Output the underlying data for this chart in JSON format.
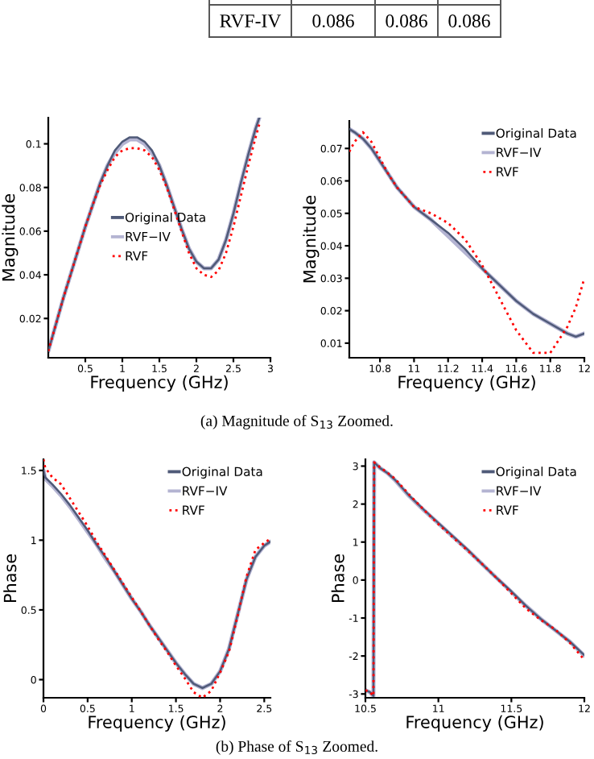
{
  "chart_data": [
    {
      "type": "other",
      "annotations": [
        "RVF-IV",
        "0.086",
        "0.086",
        "0.086"
      ]
    },
    {
      "type": "line",
      "xlabel": "Frequency (GHz)",
      "ylabel": "Magnitude",
      "legend": "center",
      "grid": false,
      "xlim": [
        0,
        3
      ],
      "xticks": [
        0.5,
        1,
        1.5,
        2,
        2.5,
        3
      ],
      "ylim": [
        0.002,
        0.112
      ],
      "yticks": [
        0.02,
        0.04,
        0.06,
        0.08,
        0.1
      ],
      "x": [
        0,
        0.1,
        0.2,
        0.3,
        0.4,
        0.5,
        0.6,
        0.7,
        0.8,
        0.9,
        1.0,
        1.1,
        1.2,
        1.3,
        1.4,
        1.5,
        1.6,
        1.7,
        1.8,
        1.9,
        2.0,
        2.1,
        2.2,
        2.3,
        2.4,
        2.5,
        2.6,
        2.7,
        2.8,
        2.85
      ],
      "annotations": [
        "(a) Magnitude of S$_{13}$ Zoomed."
      ],
      "series": [
        {
          "name": "Original Data",
          "color": "#4f5a78",
          "line_style": "solid",
          "values": [
            0.005,
            0.017,
            0.029,
            0.04,
            0.051,
            0.062,
            0.072,
            0.082,
            0.09,
            0.097,
            0.101,
            0.103,
            0.103,
            0.101,
            0.097,
            0.09,
            0.081,
            0.071,
            0.061,
            0.052,
            0.046,
            0.043,
            0.043,
            0.047,
            0.056,
            0.068,
            0.082,
            0.095,
            0.107,
            0.112
          ]
        },
        {
          "name": "RVF−IV",
          "color": "#b4b4d2",
          "line_style": "solid",
          "values": [
            0.005,
            0.017,
            0.029,
            0.04,
            0.051,
            0.062,
            0.072,
            0.082,
            0.09,
            0.096,
            0.1,
            0.102,
            0.102,
            0.1,
            0.096,
            0.09,
            0.081,
            0.071,
            0.061,
            0.052,
            0.046,
            0.043,
            0.043,
            0.047,
            0.056,
            0.068,
            0.082,
            0.095,
            0.107,
            0.112
          ]
        },
        {
          "name": "RVF",
          "color": "#ff0000",
          "line_style": "dotted",
          "values": [
            0.005,
            0.017,
            0.029,
            0.04,
            0.051,
            0.062,
            0.072,
            0.081,
            0.088,
            0.094,
            0.097,
            0.098,
            0.098,
            0.097,
            0.094,
            0.088,
            0.08,
            0.07,
            0.06,
            0.05,
            0.043,
            0.04,
            0.039,
            0.042,
            0.05,
            0.062,
            0.076,
            0.09,
            0.103,
            0.109
          ]
        }
      ]
    },
    {
      "type": "line",
      "xlabel": "Frequency (GHz)",
      "ylabel": "Magnitude",
      "legend": "upper right",
      "grid": false,
      "xlim": [
        10.62,
        12
      ],
      "xticks": [
        10.8,
        11,
        11.2,
        11.4,
        11.6,
        11.8,
        12
      ],
      "ylim": [
        0.0055,
        0.0785
      ],
      "yticks": [
        0.01,
        0.02,
        0.03,
        0.04,
        0.05,
        0.06,
        0.07
      ],
      "x": [
        10.62,
        10.65,
        10.7,
        10.75,
        10.8,
        10.85,
        10.9,
        10.95,
        11.0,
        11.1,
        11.2,
        11.3,
        11.4,
        11.5,
        11.6,
        11.7,
        11.8,
        11.9,
        11.95,
        12.0
      ],
      "series": [
        {
          "name": "Original Data",
          "color": "#4f5a78",
          "line_style": "solid",
          "values": [
            0.076,
            0.075,
            0.073,
            0.07,
            0.066,
            0.062,
            0.058,
            0.055,
            0.052,
            0.048,
            0.044,
            0.039,
            0.033,
            0.028,
            0.023,
            0.019,
            0.016,
            0.013,
            0.012,
            0.013
          ]
        },
        {
          "name": "RVF−IV",
          "color": "#b4b4d2",
          "line_style": "solid",
          "values": [
            0.076,
            0.075,
            0.073,
            0.07,
            0.066,
            0.062,
            0.058,
            0.055,
            0.052,
            0.048,
            0.043,
            0.038,
            0.033,
            0.028,
            0.023,
            0.019,
            0.016,
            0.013,
            0.012,
            0.013
          ]
        },
        {
          "name": "RVF",
          "color": "#ff0000",
          "line_style": "dotted",
          "values": [
            0.069,
            0.072,
            0.075,
            0.072,
            0.067,
            0.062,
            0.058,
            0.055,
            0.052,
            0.05,
            0.047,
            0.042,
            0.034,
            0.024,
            0.014,
            0.007,
            0.007,
            0.015,
            0.021,
            0.03
          ]
        }
      ]
    },
    {
      "type": "line",
      "xlabel": "Frequency (GHz)",
      "ylabel": "Phase",
      "legend": "upper right",
      "grid": false,
      "xlim": [
        0,
        2.57
      ],
      "xticks": [
        0,
        0.5,
        1,
        1.5,
        2,
        2.5
      ],
      "ylim": [
        -0.13,
        1.58
      ],
      "yticks": [
        0,
        0.5,
        1,
        1.5
      ],
      "x": [
        0,
        0.02,
        0.1,
        0.2,
        0.3,
        0.4,
        0.5,
        0.6,
        0.7,
        0.8,
        0.9,
        1.0,
        1.1,
        1.2,
        1.3,
        1.4,
        1.5,
        1.6,
        1.7,
        1.8,
        1.9,
        2.0,
        2.1,
        2.2,
        2.3,
        2.4,
        2.5,
        2.57
      ],
      "annotations": [
        "(b) Phase of S$_{13}$ Zoomed."
      ],
      "series": [
        {
          "name": "Original Data",
          "color": "#4f5a78",
          "line_style": "solid",
          "values": [
            1.5,
            1.45,
            1.4,
            1.33,
            1.25,
            1.16,
            1.07,
            0.97,
            0.88,
            0.78,
            0.68,
            0.58,
            0.49,
            0.39,
            0.3,
            0.21,
            0.12,
            0.04,
            -0.03,
            -0.06,
            -0.03,
            0.06,
            0.22,
            0.47,
            0.72,
            0.88,
            0.96,
            0.99
          ]
        },
        {
          "name": "RVF−IV",
          "color": "#b4b4d2",
          "line_style": "solid",
          "values": [
            1.5,
            1.44,
            1.39,
            1.32,
            1.24,
            1.15,
            1.06,
            0.97,
            0.87,
            0.78,
            0.68,
            0.58,
            0.49,
            0.39,
            0.3,
            0.21,
            0.12,
            0.04,
            -0.03,
            -0.06,
            -0.03,
            0.06,
            0.22,
            0.47,
            0.72,
            0.88,
            0.96,
            0.99
          ]
        },
        {
          "name": "RVF",
          "color": "#ff0000",
          "line_style": "dotted",
          "values": [
            1.58,
            1.52,
            1.45,
            1.4,
            1.3,
            1.2,
            1.1,
            0.99,
            0.89,
            0.79,
            0.69,
            0.59,
            0.49,
            0.39,
            0.29,
            0.2,
            0.1,
            0.01,
            -0.09,
            -0.13,
            -0.08,
            0.05,
            0.2,
            0.46,
            0.74,
            0.93,
            0.98,
            1.01
          ]
        }
      ]
    },
    {
      "type": "line",
      "xlabel": "Frequency (GHz)",
      "ylabel": "Phase",
      "legend": "upper right",
      "grid": false,
      "xlim": [
        10.5,
        12
      ],
      "xticks": [
        10.5,
        11,
        11.5,
        12
      ],
      "ylim": [
        -3.1,
        3.18
      ],
      "yticks": [
        -3,
        -2,
        -1,
        0,
        1,
        2,
        3
      ],
      "x": [
        10.5,
        10.53,
        10.555,
        10.56,
        10.6,
        10.65,
        10.7,
        10.8,
        10.9,
        11.0,
        11.1,
        11.2,
        11.3,
        11.4,
        11.5,
        11.6,
        11.7,
        11.8,
        11.9,
        12.0
      ],
      "series": [
        {
          "name": "Original Data",
          "color": "#4f5a78",
          "line_style": "solid",
          "values": [
            -2.9,
            -2.95,
            -3.05,
            3.1,
            2.95,
            2.82,
            2.65,
            2.22,
            1.85,
            1.5,
            1.15,
            0.8,
            0.42,
            0.05,
            -0.3,
            -0.68,
            -1.02,
            -1.32,
            -1.62,
            -1.98
          ]
        },
        {
          "name": "RVF−IV",
          "color": "#b4b4d2",
          "line_style": "solid",
          "values": [
            -2.9,
            -2.95,
            -3.05,
            3.1,
            2.95,
            2.82,
            2.64,
            2.21,
            1.84,
            1.49,
            1.14,
            0.79,
            0.42,
            0.05,
            -0.31,
            -0.68,
            -1.02,
            -1.32,
            -1.62,
            -1.99
          ]
        },
        {
          "name": "RVF",
          "color": "#ff0000",
          "line_style": "dotted",
          "values": [
            -2.9,
            -2.95,
            -3.05,
            3.1,
            2.97,
            2.83,
            2.68,
            2.25,
            1.85,
            1.47,
            1.12,
            0.78,
            0.42,
            0.05,
            -0.35,
            -0.75,
            -1.05,
            -1.3,
            -1.65,
            -2.1
          ]
        }
      ]
    }
  ]
}
